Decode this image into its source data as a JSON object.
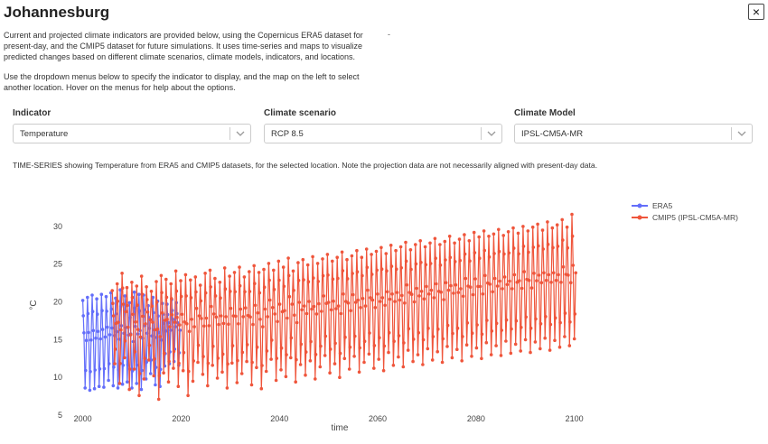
{
  "header": {
    "title": "Johannesburg",
    "close_glyph": "×"
  },
  "description": {
    "p1_lines": [
      "Current and projected climate indicators are provided below, using the Copernicus ERA5 dataset for",
      "present-day, and the CMIP5 dataset for future simulations. It uses time-series and maps to visualize",
      "predicted changes based on different climate scenarios, climate models, indicators, and locations."
    ],
    "p2_lines": [
      "Use the dropdown menus below to specify the indicator to display, and the map on the left to select",
      "another location. Hover on the menus for help about the options."
    ],
    "dash": "-"
  },
  "controls": {
    "indicator": {
      "label": "Indicator",
      "value": "Temperature"
    },
    "scenario": {
      "label": "Climate scenario",
      "value": "RCP 8.5"
    },
    "model": {
      "label": "Climate Model",
      "value": "IPSL-CM5A-MR"
    }
  },
  "note": "TIME-SERIES showing Temperature from ERA5 and CMIP5 datasets, for the selected location. Note the projection data are not necessarily aligned with present-day data.",
  "colors": {
    "era5": "#636efa",
    "cmip5": "#ef553b",
    "accent_text": "#2a3f5f"
  },
  "chart_data": {
    "type": "line",
    "xlabel": "time",
    "ylabel": "°C",
    "xlim": [
      1997.5,
      2103
    ],
    "ylim": [
      5,
      32.5
    ],
    "x_ticks": [
      2000,
      2020,
      2040,
      2060,
      2080,
      2100
    ],
    "y_ticks": [
      5,
      10,
      15,
      20,
      25,
      30
    ],
    "legend_position": "top-right",
    "grid": false,
    "series": [
      {
        "name": "ERA5",
        "color": "#636efa",
        "x_start": 2000,
        "x_end": 2020,
        "summer_values": [
          20.2,
          20.6,
          20.9,
          20.4,
          21.0,
          20.7,
          21.2,
          20.5,
          21.6,
          20.8,
          19.9,
          21.3,
          21.0,
          20.9,
          19.5,
          20.6,
          20.1,
          19.8,
          19.7,
          20.3,
          19.9
        ],
        "winter_values": [
          8.6,
          8.3,
          8.5,
          8.8,
          8.7,
          9.6,
          8.9,
          8.6,
          9.1,
          9.4,
          8.6,
          9.2,
          8.4,
          9.8,
          10.5,
          9.0,
          8.8,
          11.5,
          11.8,
          12.1,
          11.6
        ]
      },
      {
        "name": "CMIP5 (IPSL-CM5A-MR)",
        "color": "#ef553b",
        "x_start": 2006,
        "x_end": 2100.5,
        "summer_values": [
          21.5,
          22.4,
          23.8,
          21.9,
          22.6,
          22.1,
          23.4,
          22.0,
          21.4,
          22.7,
          23.5,
          23.0,
          22.4,
          24.1,
          22.8,
          23.6,
          22.9,
          23.3,
          22.2,
          23.8,
          24.2,
          23.1,
          22.6,
          24.5,
          23.4,
          23.9,
          24.6,
          23.3,
          24.0,
          24.8,
          23.9,
          24.3,
          25.1,
          24.2,
          25.4,
          24.6,
          25.8,
          24.1,
          25.2,
          25.6,
          24.9,
          26.0,
          25.1,
          25.7,
          26.3,
          25.4,
          25.9,
          26.6,
          25.6,
          26.1,
          26.8,
          25.9,
          27.0,
          26.3,
          26.7,
          27.2,
          26.4,
          27.5,
          26.8,
          27.3,
          27.9,
          26.9,
          27.6,
          28.1,
          27.3,
          27.8,
          28.4,
          27.6,
          28.0,
          28.7,
          27.8,
          28.3,
          28.9,
          28.1,
          29.2,
          28.6,
          29.4,
          28.7,
          29.0,
          29.6,
          28.8,
          29.3,
          29.8,
          29.1,
          30.0,
          29.4,
          29.9,
          30.3,
          29.5,
          30.6,
          29.8,
          30.2,
          30.9,
          29.9,
          31.6
        ],
        "winter_values": [
          11.8,
          9.2,
          12.6,
          8.4,
          11.1,
          7.6,
          9.8,
          12.3,
          10.2,
          7.1,
          10.6,
          9.4,
          11.2,
          8.8,
          10.9,
          7.6,
          9.5,
          12.0,
          10.4,
          8.9,
          11.6,
          9.9,
          10.7,
          8.6,
          11.9,
          9.3,
          10.5,
          12.1,
          9.0,
          11.3,
          8.5,
          10.8,
          12.4,
          9.6,
          11.0,
          10.1,
          12.6,
          9.4,
          11.7,
          10.3,
          12.2,
          9.8,
          11.4,
          12.9,
          10.6,
          11.8,
          10.0,
          12.5,
          11.1,
          12.8,
          10.7,
          12.0,
          13.1,
          11.2,
          12.4,
          10.9,
          13.3,
          11.6,
          12.7,
          11.4,
          13.6,
          12.1,
          13.0,
          11.7,
          13.8,
          12.3,
          13.4,
          12.0,
          14.1,
          12.6,
          13.7,
          12.2,
          14.3,
          12.8,
          13.9,
          12.5,
          14.6,
          13.0,
          14.2,
          12.9,
          14.8,
          13.2,
          14.4,
          13.5,
          15.0,
          13.3,
          14.7,
          13.8,
          15.2,
          13.6,
          14.9,
          14.0,
          15.4,
          14.2,
          15.1
        ]
      }
    ]
  }
}
